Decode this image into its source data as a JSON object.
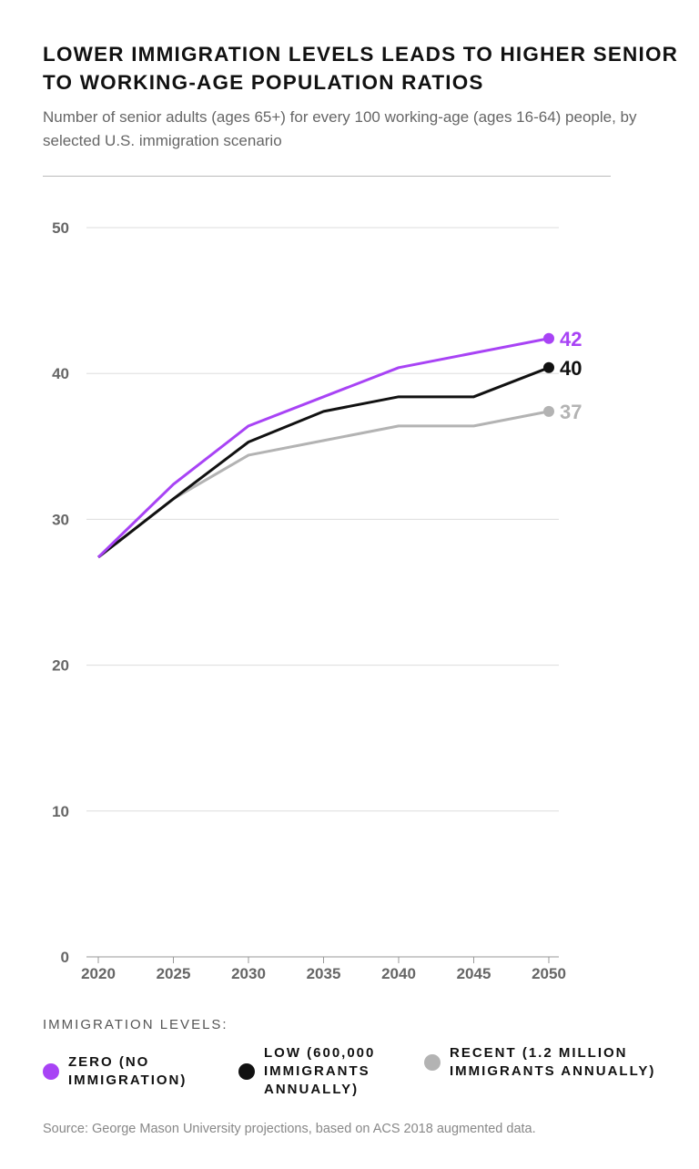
{
  "title": "LOWER IMMIGRATION LEVELS LEADS TO HIGHER SENIOR TO WORKING-AGE POPULATION RATIOS",
  "subtitle": "Number of senior adults (ages 65+) for every 100 working-age (ages 16-64) people, by selected U.S. immigration scenario",
  "legend_title": "IMMIGRATION LEVELS:",
  "source": "Source: George Mason University projections, based on ACS 2018 augmented data.",
  "chart_data": {
    "type": "line",
    "title": "LOWER IMMIGRATION LEVELS LEADS TO HIGHER SENIOR TO WORKING-AGE POPULATION RATIOS",
    "xlabel": "",
    "ylabel": "",
    "x": [
      2020,
      2025,
      2030,
      2035,
      2040,
      2045,
      2050
    ],
    "xticks": [
      "2020",
      "2025",
      "2030",
      "2035",
      "2040",
      "2045",
      "2050"
    ],
    "yticks": [
      "0",
      "10",
      "20",
      "30",
      "40",
      "50"
    ],
    "ylim": [
      0,
      50
    ],
    "grid": true,
    "legend_placement": "bottom",
    "series": [
      {
        "name": "ZERO (NO IMMIGRATION)",
        "color": "#a843f5",
        "values": [
          27.4,
          32.4,
          36.4,
          38.4,
          40.4,
          41.4,
          42.4
        ],
        "end_label": "42"
      },
      {
        "name": "LOW (600,000 IMMIGRANTS ANNUALLY)",
        "color": "#111111",
        "values": [
          27.4,
          31.4,
          35.3,
          37.4,
          38.4,
          38.4,
          40.4
        ],
        "end_label": "40"
      },
      {
        "name": "RECENT (1.2 MILLION IMMIGRANTS ANNUALLY)",
        "color": "#b3b3b3",
        "values": [
          27.4,
          31.4,
          34.4,
          35.4,
          36.4,
          36.4,
          37.4
        ],
        "end_label": "37"
      }
    ]
  }
}
